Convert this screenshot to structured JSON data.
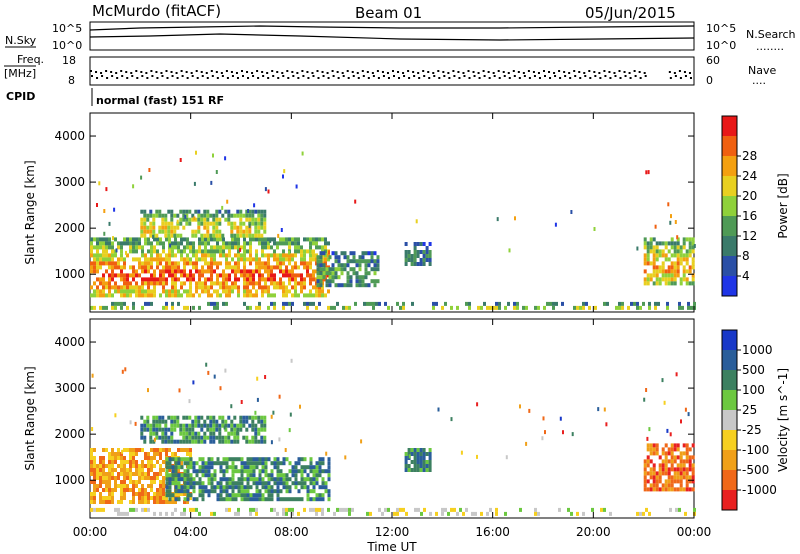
{
  "header": {
    "title": "McMurdo (fitACF)",
    "beam": "Beam 01",
    "date": "05/Jun/2015"
  },
  "top_panel": {
    "left_label": "N.Sky",
    "left_ticks": [
      "10^5",
      "10^0"
    ],
    "right_ticks": [
      "10^5",
      "10^0"
    ],
    "right_label": "N.Search",
    "right_dots": "........"
  },
  "freq_panel": {
    "label_line1": "Freq.",
    "label_line2": "[MHz]",
    "left_ticks": [
      "18",
      "8"
    ],
    "right_ticks": [
      "60",
      "0"
    ],
    "right_label": "Nave",
    "right_dots": "...."
  },
  "cpid": {
    "label": "CPID",
    "value": "normal (fast) 151 RF"
  },
  "time_axis": {
    "ticks": [
      "00:00",
      "04:00",
      "08:00",
      "12:00",
      "16:00",
      "20:00",
      "00:00"
    ],
    "title": "Time UT"
  },
  "colors": {
    "power": [
      "#1f35e6",
      "#2a4fa6",
      "#3a7a6a",
      "#4f9a56",
      "#8fd13a",
      "#e8d020",
      "#f4a010",
      "#f06010",
      "#e81818"
    ],
    "velocity": [
      "#1838c8",
      "#2a5e9a",
      "#3c8060",
      "#6cc840",
      "#c8c8c8",
      "#f6d020",
      "#f0a018",
      "#f06818",
      "#e82020"
    ]
  },
  "chart_data": [
    {
      "type": "heatmap",
      "title": "",
      "ylabel": "Slant Range [km]",
      "xlabel": "",
      "ylim": [
        180,
        4500
      ],
      "yticks": [
        "1000",
        "2000",
        "3000",
        "4000"
      ],
      "xlim_hours": [
        0,
        24
      ],
      "colorbar": {
        "label": "Power [dB]",
        "ticks": [
          "4",
          "8",
          "12",
          "16",
          "20",
          "24",
          "28"
        ],
        "range": [
          0,
          30
        ]
      },
      "echo_regions": [
        {
          "t_start_h": 0.0,
          "t_end_h": 9.5,
          "range_km": [
            500,
            1800
          ],
          "peak_power_db": 28
        },
        {
          "t_start_h": 9.0,
          "t_end_h": 11.5,
          "range_km": [
            800,
            1500
          ],
          "peak_power_db": 12
        },
        {
          "t_start_h": 2.0,
          "t_end_h": 7.0,
          "range_km": [
            1800,
            2400
          ],
          "peak_power_db": 20
        },
        {
          "t_start_h": 12.5,
          "t_end_h": 13.5,
          "range_km": [
            1200,
            1700
          ],
          "peak_power_db": 8
        },
        {
          "t_start_h": 22.0,
          "t_end_h": 24.0,
          "range_km": [
            800,
            1800
          ],
          "peak_power_db": 24
        },
        {
          "t_start_h": 0.0,
          "t_end_h": 24.0,
          "range_km": [
            250,
            400
          ],
          "peak_power_db": 16
        }
      ]
    },
    {
      "type": "heatmap",
      "title": "",
      "ylabel": "Slant Range [km]",
      "xlabel": "Time UT",
      "ylim": [
        180,
        4500
      ],
      "yticks": [
        "1000",
        "2000",
        "3000",
        "4000"
      ],
      "xlim_hours": [
        0,
        24
      ],
      "colorbar": {
        "label": "Velocity [m s^-1]",
        "ticks": [
          "1000",
          "500",
          "100",
          "25",
          "-25",
          "-100",
          "-500",
          "-1000"
        ]
      },
      "echo_regions": [
        {
          "t_start_h": 0.0,
          "t_end_h": 4.0,
          "range_km": [
            500,
            1700
          ],
          "velocity": -200
        },
        {
          "t_start_h": 3.0,
          "t_end_h": 9.5,
          "range_km": [
            600,
            1500
          ],
          "velocity": 200
        },
        {
          "t_start_h": 2.0,
          "t_end_h": 7.0,
          "range_km": [
            1800,
            2400
          ],
          "velocity": 150
        },
        {
          "t_start_h": 12.5,
          "t_end_h": 13.5,
          "range_km": [
            1200,
            1700
          ],
          "velocity": 100
        },
        {
          "t_start_h": 22.0,
          "t_end_h": 24.0,
          "range_km": [
            800,
            1800
          ],
          "velocity": -300
        },
        {
          "t_start_h": 0.0,
          "t_end_h": 24.0,
          "range_km": [
            250,
            400
          ],
          "velocity": 0
        }
      ]
    }
  ]
}
